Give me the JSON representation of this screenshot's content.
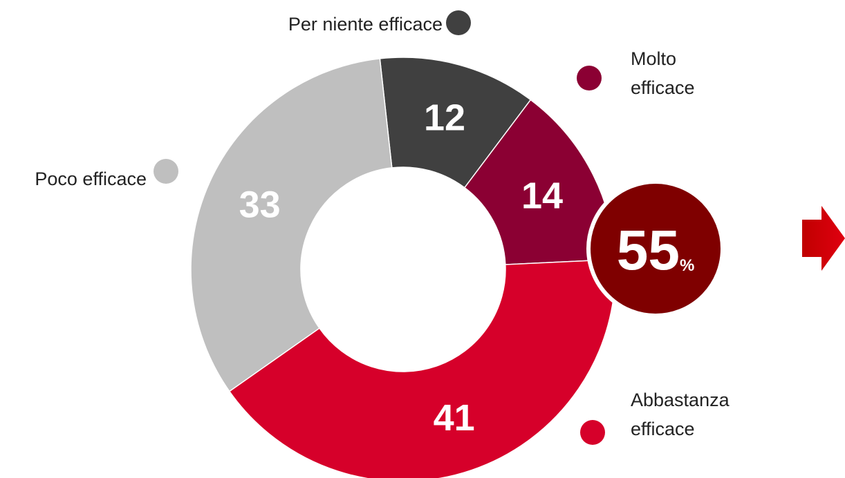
{
  "chart_data": {
    "type": "donut",
    "categories": [
      "Per niente efficace",
      "Molto efficace",
      "Abbastanza efficace",
      "Poco efficace"
    ],
    "values": [
      12,
      14,
      41,
      33
    ],
    "colors": [
      "#404040",
      "#8b0033",
      "#d6002a",
      "#bfbfbf"
    ],
    "callout_value": 55,
    "callout_unit": "%"
  }
}
